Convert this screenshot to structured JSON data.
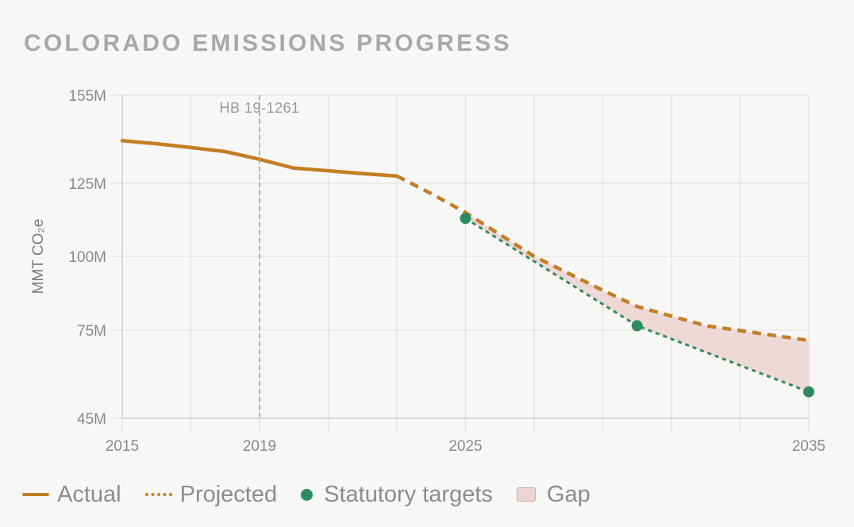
{
  "title": "COLORADO EMISSIONS PROGRESS",
  "chart_data": {
    "type": "line",
    "title": "COLORADO EMISSIONS PROGRESS",
    "ylabel": "MMT CO₂e",
    "ylim": [
      45,
      155
    ],
    "xlim": [
      2015,
      2035
    ],
    "x_ticks": [
      2015,
      2019,
      2025,
      2035
    ],
    "y_ticks": [
      45,
      75,
      100,
      125,
      155
    ],
    "y_tick_labels": [
      "45M",
      "75M",
      "100M",
      "125M",
      "155M"
    ],
    "grid": true,
    "legend_position": "bottom-left",
    "series": [
      {
        "name": "Actual",
        "style": "solid",
        "color": "#c47e24",
        "points": [
          [
            2015,
            139.5
          ],
          [
            2016,
            138.5
          ],
          [
            2017,
            137.2
          ],
          [
            2018,
            135.8
          ],
          [
            2019,
            133.2
          ],
          [
            2020,
            130.2
          ],
          [
            2021,
            129.3
          ],
          [
            2022,
            128.3
          ],
          [
            2023,
            127.5
          ]
        ]
      },
      {
        "name": "Projected",
        "style": "dashed",
        "color": "#c47e24",
        "points": [
          [
            2023,
            127.5
          ],
          [
            2024,
            121.5
          ],
          [
            2025,
            115.0
          ],
          [
            2027,
            100.0
          ],
          [
            2029,
            88.5
          ],
          [
            2030,
            83.0
          ],
          [
            2032,
            76.5
          ],
          [
            2035,
            71.5
          ]
        ]
      },
      {
        "name": "Statutory targets",
        "style": "markers",
        "color": "#2e8b5f",
        "points": [
          [
            2025,
            113.0
          ],
          [
            2030,
            76.5
          ],
          [
            2035,
            54.0
          ]
        ]
      }
    ],
    "gap_fill_color": "#ecd6d3",
    "annotations": [
      {
        "x": 2019,
        "label": "HB 19-1261"
      }
    ]
  },
  "legend": {
    "actual": "Actual",
    "projected": "Projected",
    "targets": "Statutory targets",
    "gap": "Gap"
  }
}
